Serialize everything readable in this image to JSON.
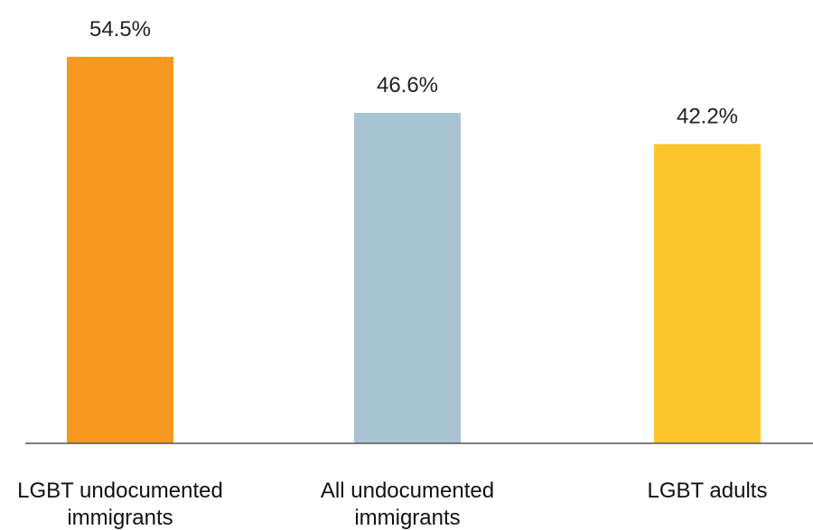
{
  "chart_data": {
    "type": "bar",
    "categories": [
      "LGBT undocumented immigrants",
      "All undocumented immigrants",
      "LGBT adults"
    ],
    "category_lines": [
      [
        "LGBT undocumented",
        "immigrants"
      ],
      [
        "All undocumented",
        "immigrants"
      ],
      [
        "LGBT adults"
      ]
    ],
    "values": [
      54.5,
      46.6,
      42.2
    ],
    "value_labels": [
      "54.5%",
      "46.6%",
      "42.2%"
    ],
    "colors": [
      "#f7991e",
      "#a8c4d3",
      "#fec62e"
    ],
    "axis_color": "#555555",
    "ylim": [
      0,
      55
    ],
    "grid": false,
    "legend": "none",
    "title": "",
    "xlabel": "",
    "ylabel": ""
  }
}
